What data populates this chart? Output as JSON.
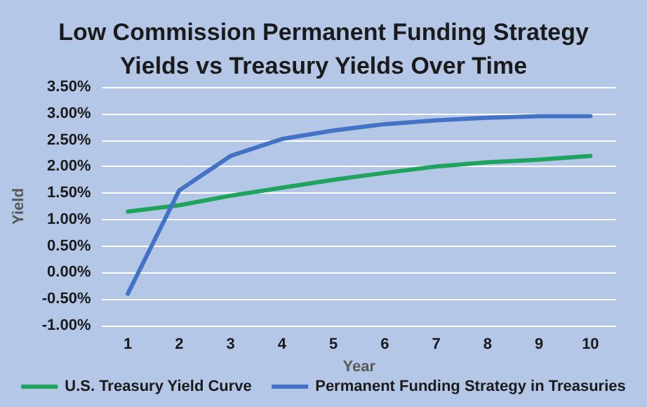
{
  "chart_data": {
    "type": "line",
    "title": "Low Commission Permanent Funding Strategy\nYields vs Treasury Yields Over Time",
    "xlabel": "Year",
    "ylabel": "Yield",
    "categories": [
      "1",
      "2",
      "3",
      "4",
      "5",
      "6",
      "7",
      "8",
      "9",
      "10"
    ],
    "series": [
      {
        "name": "U.S. Treasury Yield Curve",
        "color": "#1fa35f",
        "values": [
          1.15,
          1.27,
          1.45,
          1.6,
          1.75,
          1.88,
          2.0,
          2.08,
          2.13,
          2.2
        ]
      },
      {
        "name": "Permanent Funding Strategy in Treasuries",
        "color": "#4472c4",
        "values": [
          -0.4,
          1.55,
          2.2,
          2.52,
          2.68,
          2.8,
          2.87,
          2.92,
          2.95,
          2.95
        ]
      }
    ],
    "ylim": [
      -1.0,
      3.5
    ],
    "yticks": [
      {
        "value": -1.0,
        "label": "-1.00%"
      },
      {
        "value": -0.5,
        "label": "-0.50%"
      },
      {
        "value": 0,
        "label": "0.00%"
      },
      {
        "value": 0.5,
        "label": "0.50%"
      },
      {
        "value": 1.0,
        "label": "1.00%"
      },
      {
        "value": 1.5,
        "label": "1.50%"
      },
      {
        "value": 2.0,
        "label": "2.00%"
      },
      {
        "value": 2.5,
        "label": "2.50%"
      },
      {
        "value": 3.0,
        "label": "3.00%"
      },
      {
        "value": 3.5,
        "label": "3.50%"
      }
    ],
    "grid": "y",
    "legend": "bottom",
    "marker": "none",
    "line_style": "solid"
  }
}
